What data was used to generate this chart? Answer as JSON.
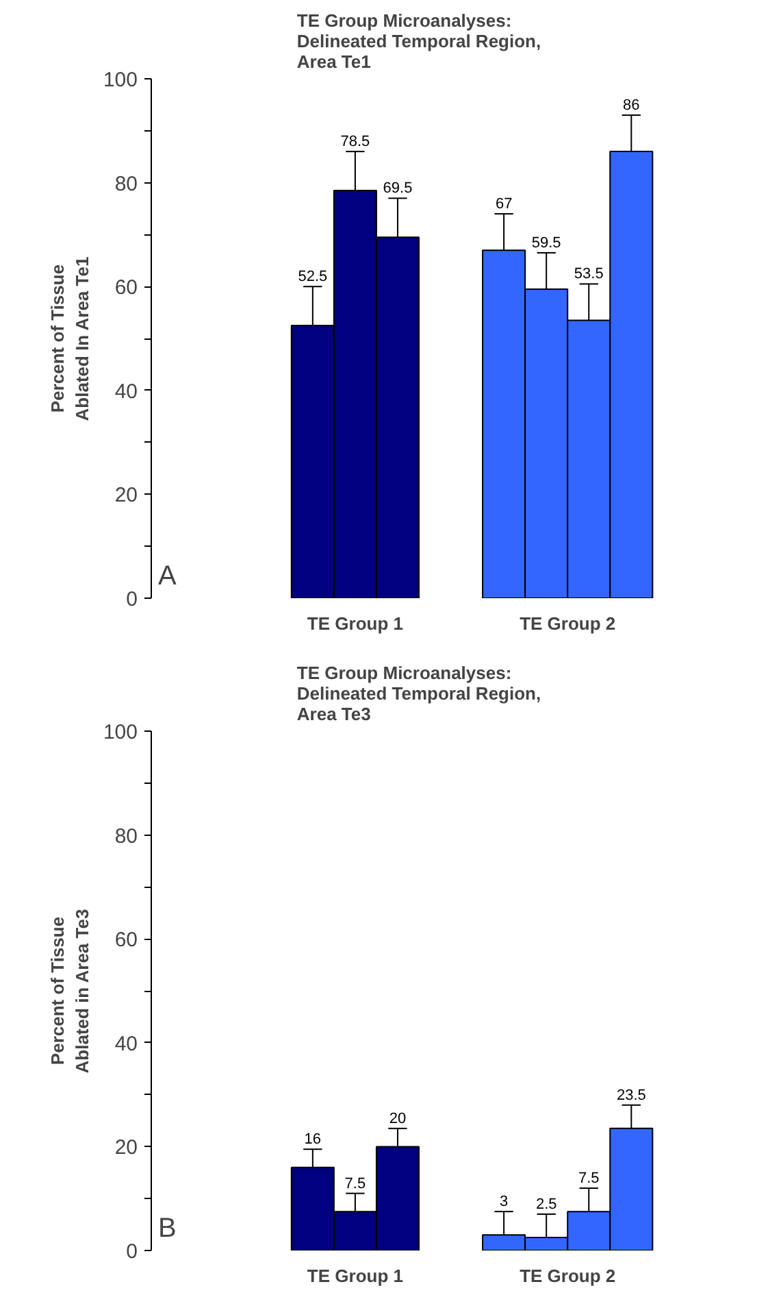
{
  "chart_data": [
    {
      "type": "bar",
      "title": "TE Group Microanalyses:\nDelineated Temporal Region,\nArea Te1",
      "ylabel": "Percent of Tissue\nAblated In Area Te1",
      "categories": [
        "TE Group 1",
        "TE Group 2"
      ],
      "ylim": [
        0,
        100
      ],
      "yticks": [
        0,
        20,
        40,
        60,
        80,
        100
      ],
      "grid": false,
      "data_labels": true,
      "annotations": [
        "A"
      ],
      "series": [
        {
          "colors": [
            "#000080",
            "#3366ff"
          ],
          "values": [
            52.5,
            67
          ],
          "errors": [
            [
              52.5,
              60
            ],
            [
              67,
              74
            ]
          ]
        },
        {
          "colors": [
            "#000080",
            "#3366ff"
          ],
          "values": [
            78.5,
            59.5
          ],
          "errors": [
            [
              78.5,
              86
            ],
            [
              59.5,
              66.5
            ]
          ]
        },
        {
          "colors": [
            "#000080",
            "#3366ff"
          ],
          "values": [
            69.5,
            53.5
          ],
          "errors": [
            [
              69.5,
              77
            ],
            [
              53.5,
              60.5
            ]
          ]
        },
        {
          "colors": [
            "#000080",
            "#3366ff"
          ],
          "values": [
            null,
            86
          ],
          "errors": [
            null,
            [
              86,
              93
            ]
          ]
        }
      ]
    },
    {
      "type": "bar",
      "title": "TE Group Microanalyses:\nDelineated Temporal Region,\nArea Te3",
      "ylabel": "Percent of Tissue\nAblated in Area Te3",
      "categories": [
        "TE Group 1",
        "TE Group 2"
      ],
      "ylim": [
        0,
        100
      ],
      "yticks": [
        0,
        20,
        40,
        60,
        80,
        100
      ],
      "grid": false,
      "data_labels": true,
      "annotations": [
        "B"
      ],
      "series": [
        {
          "colors": [
            "#000080",
            "#3366ff"
          ],
          "values": [
            16,
            3
          ],
          "errors": [
            [
              16,
              19.5
            ],
            [
              3,
              7.5
            ]
          ]
        },
        {
          "colors": [
            "#000080",
            "#3366ff"
          ],
          "values": [
            7.5,
            2.5
          ],
          "errors": [
            [
              7.5,
              11
            ],
            [
              2.5,
              7
            ]
          ]
        },
        {
          "colors": [
            "#000080",
            "#3366ff"
          ],
          "values": [
            20,
            7.5
          ],
          "errors": [
            [
              20,
              23.5
            ],
            [
              7.5,
              12
            ]
          ]
        },
        {
          "colors": [
            "#000080",
            "#3366ff"
          ],
          "values": [
            null,
            23.5
          ],
          "errors": [
            null,
            [
              23.5,
              28
            ]
          ]
        }
      ]
    }
  ]
}
